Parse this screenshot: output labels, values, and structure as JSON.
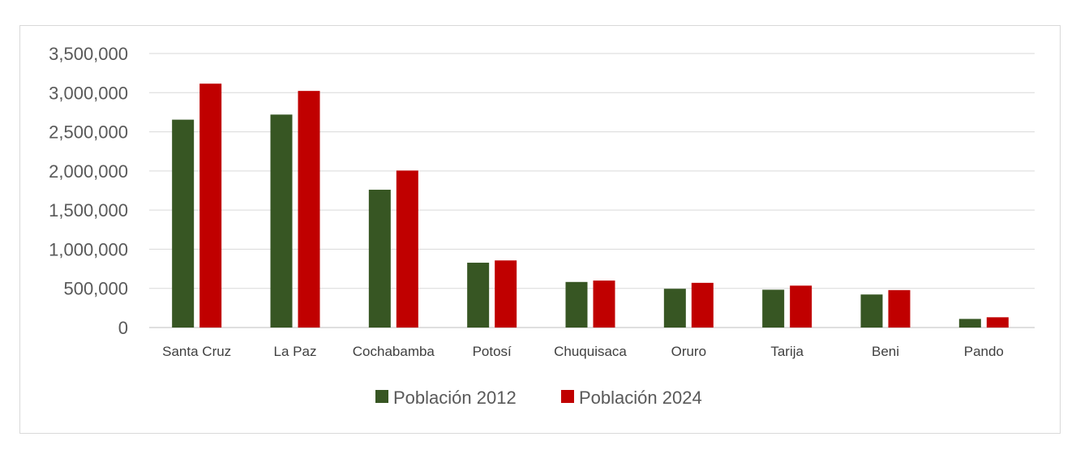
{
  "chart_data": {
    "type": "bar",
    "title": "",
    "xlabel": "",
    "ylabel": "",
    "categories": [
      "Santa Cruz",
      "La Paz",
      "Cochabamba",
      "Potosí",
      "Chuquisaca",
      "Oruro",
      "Tarija",
      "Beni",
      "Pando"
    ],
    "series": [
      {
        "name": "Población 2012",
        "color": "#375623",
        "values": [
          2655000,
          2720000,
          1760000,
          828000,
          582000,
          495000,
          483000,
          422000,
          110000
        ]
      },
      {
        "name": "Población 2024",
        "color": "#c00000",
        "values": [
          3115000,
          3022000,
          2005000,
          857000,
          600000,
          571000,
          535000,
          478000,
          131000
        ]
      }
    ],
    "ylim": [
      0,
      3500000
    ],
    "yticks": [
      0,
      500000,
      1000000,
      1500000,
      2000000,
      2500000,
      3000000,
      3500000
    ],
    "ytick_labels": [
      "0",
      "500,000",
      "1,000,000",
      "1,500,000",
      "2,000,000",
      "2,500,000",
      "3,000,000",
      "3,500,000"
    ],
    "grid": true,
    "legend": "bottom"
  }
}
